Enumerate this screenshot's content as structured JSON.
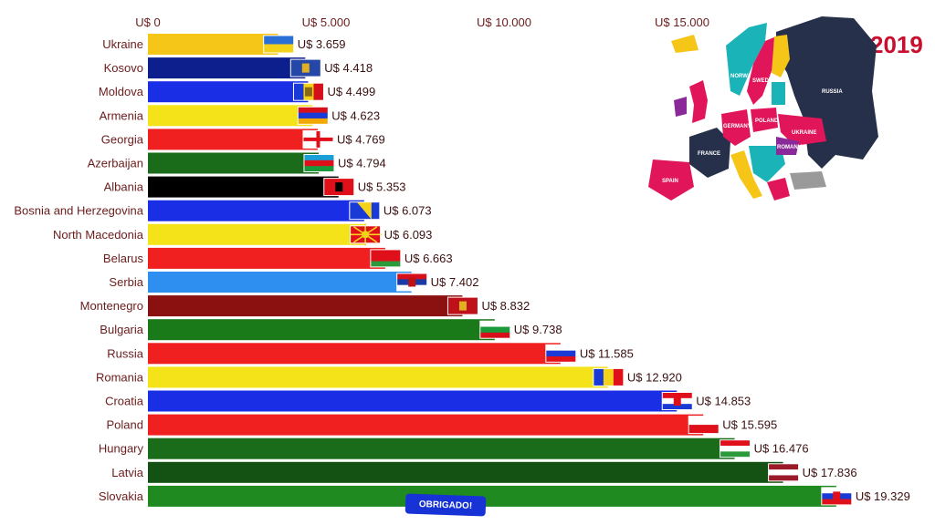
{
  "chart_data": {
    "type": "bar",
    "orientation": "horizontal",
    "title": "2019",
    "currency_prefix": "U$ ",
    "xlim": [
      0,
      20000
    ],
    "ticks": [
      0,
      5000,
      10000,
      15000
    ],
    "tick_labels": [
      "U$ 0",
      "U$ 5.000",
      "U$ 10.000",
      "U$ 15.000"
    ],
    "categories": [
      "Ukraine",
      "Kosovo",
      "Moldova",
      "Armenia",
      "Georgia",
      "Azerbaijan",
      "Albania",
      "Bosnia and Herzegovina",
      "North Macedonia",
      "Belarus",
      "Serbia",
      "Montenegro",
      "Bulgaria",
      "Russia",
      "Romania",
      "Croatia",
      "Poland",
      "Hungary",
      "Latvia",
      "Slovakia"
    ],
    "values": [
      3659,
      4418,
      4499,
      4623,
      4769,
      4794,
      5353,
      6073,
      6093,
      6663,
      7402,
      8832,
      9738,
      11585,
      12920,
      14853,
      15595,
      16476,
      17836,
      19329
    ],
    "value_labels": [
      "U$ 3.659",
      "U$ 4.418",
      "U$ 4.499",
      "U$ 4.623",
      "U$ 4.769",
      "U$ 4.794",
      "U$ 5.353",
      "U$ 6.073",
      "U$ 6.093",
      "U$ 6.663",
      "U$ 7.402",
      "U$ 8.832",
      "U$ 9.738",
      "U$ 11.585",
      "U$ 12.920",
      "U$ 14.853",
      "U$ 15.595",
      "U$ 16.476",
      "U$ 17.836",
      "U$ 19.329"
    ],
    "bar_colors": [
      "#f5c518",
      "#0d1f8c",
      "#1a2ee6",
      "#f5e31a",
      "#f02020",
      "#1a6b1a",
      "#000000",
      "#1a2ee6",
      "#f5e31a",
      "#f02020",
      "#2e8ff0",
      "#8b1010",
      "#1a7a1a",
      "#f02020",
      "#f5e31a",
      "#1a2ee6",
      "#f02020",
      "#1a6b1a",
      "#145214",
      "#1f8a1f"
    ],
    "grid": false,
    "legend": "none"
  },
  "flags": [
    {
      "name": "ukraine-flag",
      "stripes": [
        "#2a6fd6",
        "#f5d21a"
      ],
      "dir": "h"
    },
    {
      "name": "kosovo-flag",
      "stripes": [
        "#2447a8"
      ],
      "dir": "h",
      "emblem": "#e0b020"
    },
    {
      "name": "moldova-flag",
      "stripes": [
        "#1a3ad6",
        "#f5d21a",
        "#d6101a"
      ],
      "dir": "v",
      "emblem": "#8a6a10"
    },
    {
      "name": "armenia-flag",
      "stripes": [
        "#d6101a",
        "#1a3ad6",
        "#f2a800"
      ],
      "dir": "h"
    },
    {
      "name": "georgia-flag",
      "stripes": [
        "#ffffff"
      ],
      "dir": "h",
      "cross": "#e0101a"
    },
    {
      "name": "azerbaijan-flag",
      "stripes": [
        "#1aa0d6",
        "#e0101a",
        "#1a9a3a"
      ],
      "dir": "h"
    },
    {
      "name": "albania-flag",
      "stripes": [
        "#e0101a"
      ],
      "dir": "h",
      "emblem": "#000000"
    },
    {
      "name": "bosnia-flag",
      "stripes": [
        "#1a3ad6"
      ],
      "dir": "h",
      "triangle": "#f5d21a"
    },
    {
      "name": "north-macedonia-flag",
      "stripes": [
        "#e0101a"
      ],
      "dir": "h",
      "sun": "#f5d21a"
    },
    {
      "name": "belarus-flag",
      "stripes": [
        "#e0101a",
        "#e0101a",
        "#2a9a3a"
      ],
      "dir": "h"
    },
    {
      "name": "serbia-flag",
      "stripes": [
        "#d6101a",
        "#1a3aa6",
        "#ffffff"
      ],
      "dir": "h",
      "emblem": "#c01010"
    },
    {
      "name": "montenegro-flag",
      "stripes": [
        "#c0101a"
      ],
      "dir": "h",
      "emblem": "#e0b020"
    },
    {
      "name": "bulgaria-flag",
      "stripes": [
        "#ffffff",
        "#1a9a3a",
        "#d6101a"
      ],
      "dir": "h"
    },
    {
      "name": "russia-flag",
      "stripes": [
        "#ffffff",
        "#1a3ad6",
        "#e0101a"
      ],
      "dir": "h"
    },
    {
      "name": "romania-flag",
      "stripes": [
        "#1a3ad6",
        "#f5d21a",
        "#e0101a"
      ],
      "dir": "v"
    },
    {
      "name": "croatia-flag",
      "stripes": [
        "#e0101a",
        "#ffffff",
        "#1a3ad6"
      ],
      "dir": "h",
      "emblem": "#e0101a"
    },
    {
      "name": "poland-flag",
      "stripes": [
        "#ffffff",
        "#e0101a"
      ],
      "dir": "h"
    },
    {
      "name": "hungary-flag",
      "stripes": [
        "#e0101a",
        "#ffffff",
        "#2a9a3a"
      ],
      "dir": "h"
    },
    {
      "name": "latvia-flag",
      "stripes": [
        "#9a1a2a",
        "#ffffff",
        "#9a1a2a"
      ],
      "dir": "h"
    },
    {
      "name": "slovakia-flag",
      "stripes": [
        "#ffffff",
        "#1a3ad6",
        "#e0101a"
      ],
      "dir": "h",
      "emblem": "#e0101a"
    }
  ],
  "banner": {
    "text": "OBRIGADO!"
  },
  "map": {
    "labels": [
      "RUSSIA",
      "POLAND",
      "UKRAINE",
      "GERMANY",
      "FRANCE",
      "SPAIN",
      "NORWAY",
      "SWEDEN",
      "ROMANIA"
    ],
    "colors": {
      "russia": "#27304a",
      "pink": "#e0155a",
      "teal": "#19b3b8",
      "yellow": "#f5c518",
      "purple": "#8a2a9a",
      "gray": "#9a9a9a"
    }
  }
}
